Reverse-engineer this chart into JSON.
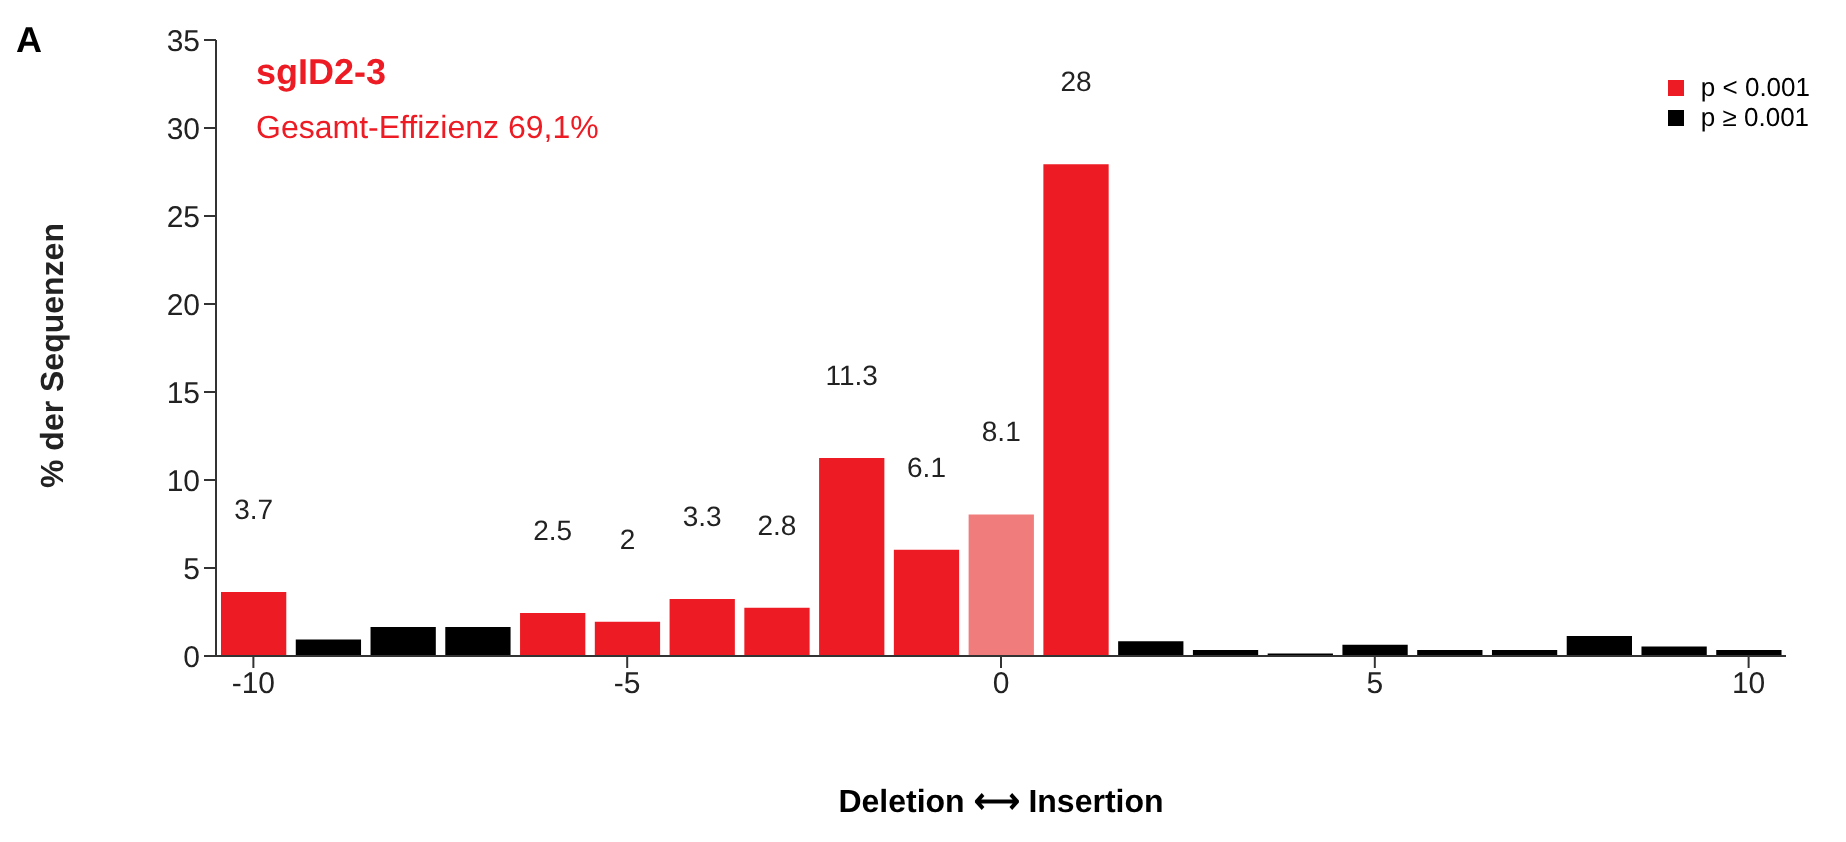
{
  "chart_data": {
    "type": "bar",
    "title": "sgID2-3",
    "subtitle": "Gesamt-Effizienz 69,1%",
    "xlabel": "Deletion ⟷ Insertion",
    "ylabel": "% der Sequenzen",
    "annotations": [
      "A"
    ],
    "x": [
      -10,
      -9,
      -8,
      -7,
      -6,
      -5,
      -4,
      -3,
      -2,
      -1,
      0,
      1,
      2,
      3,
      4,
      5,
      6,
      7,
      8,
      9,
      10
    ],
    "stacked": true,
    "series": [
      {
        "name": "p < 0.001",
        "color": "#ed1c24",
        "colors": [
          "#ed1c24",
          null,
          null,
          null,
          "#ed1c24",
          "#ed1c24",
          "#ed1c24",
          "#ed1c24",
          "#ed1c24",
          "#ed1c24",
          "#f07c7c",
          "#ed1c24",
          null,
          null,
          null,
          null,
          null,
          null,
          null,
          null,
          null
        ],
        "values": [
          3.7,
          null,
          null,
          null,
          2.5,
          2,
          3.3,
          2.8,
          11.3,
          6.1,
          8.1,
          28,
          null,
          null,
          null,
          null,
          null,
          null,
          null,
          null,
          null
        ],
        "value_labels": [
          "3.7",
          null,
          null,
          null,
          "2.5",
          "2",
          "3.3",
          "2.8",
          "11.3",
          "6.1",
          "8.1",
          "28",
          null,
          null,
          null,
          null,
          null,
          null,
          null,
          null,
          null
        ]
      },
      {
        "name": "p ≥ 0.001",
        "color": "#000000",
        "values": [
          null,
          1.0,
          1.7,
          1.7,
          null,
          null,
          null,
          null,
          null,
          null,
          null,
          null,
          0.9,
          0.4,
          0.2,
          0.7,
          0.4,
          0.4,
          1.2,
          0.6,
          0.4
        ]
      }
    ],
    "xlim": [
      -10.5,
      10.5
    ],
    "xticks": [
      -10,
      -5,
      0,
      5,
      10
    ],
    "ylim": [
      0,
      35
    ],
    "yticks": [
      0,
      5,
      10,
      15,
      20,
      25,
      30,
      35
    ],
    "grid": false,
    "legend": "top right"
  }
}
